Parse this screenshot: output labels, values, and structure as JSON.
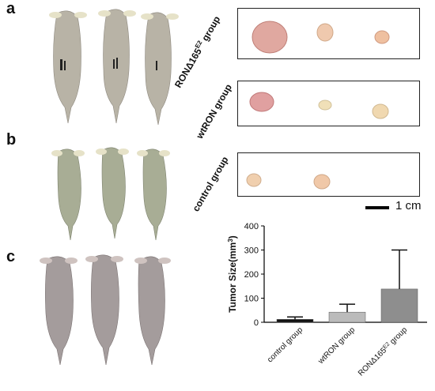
{
  "panels": {
    "a": "a",
    "b": "b",
    "c": "c"
  },
  "groups": {
    "rona": {
      "base": "RONΔ165",
      "sup": "E2",
      "suffix": " group"
    },
    "wtron": "wtRON group",
    "control": "control group"
  },
  "scale": {
    "label": "1 cm"
  },
  "chart_data": {
    "type": "bar",
    "categories": [
      "control group",
      "wtRON group",
      "RONΔ165 group"
    ],
    "category_sup": [
      "",
      "",
      "E2"
    ],
    "values": [
      12,
      42,
      138
    ],
    "errors": [
      10,
      33,
      162
    ],
    "ylabel_base": "Tumor Size(mm",
    "ylabel_sup": "3",
    "ylabel_end": ")",
    "ylim": [
      0,
      400
    ],
    "yticks": [
      0,
      100,
      200,
      300,
      400
    ],
    "bar_colors": [
      "#111111",
      "#bbbbbb",
      "#8e8e8e"
    ],
    "grid": false
  }
}
